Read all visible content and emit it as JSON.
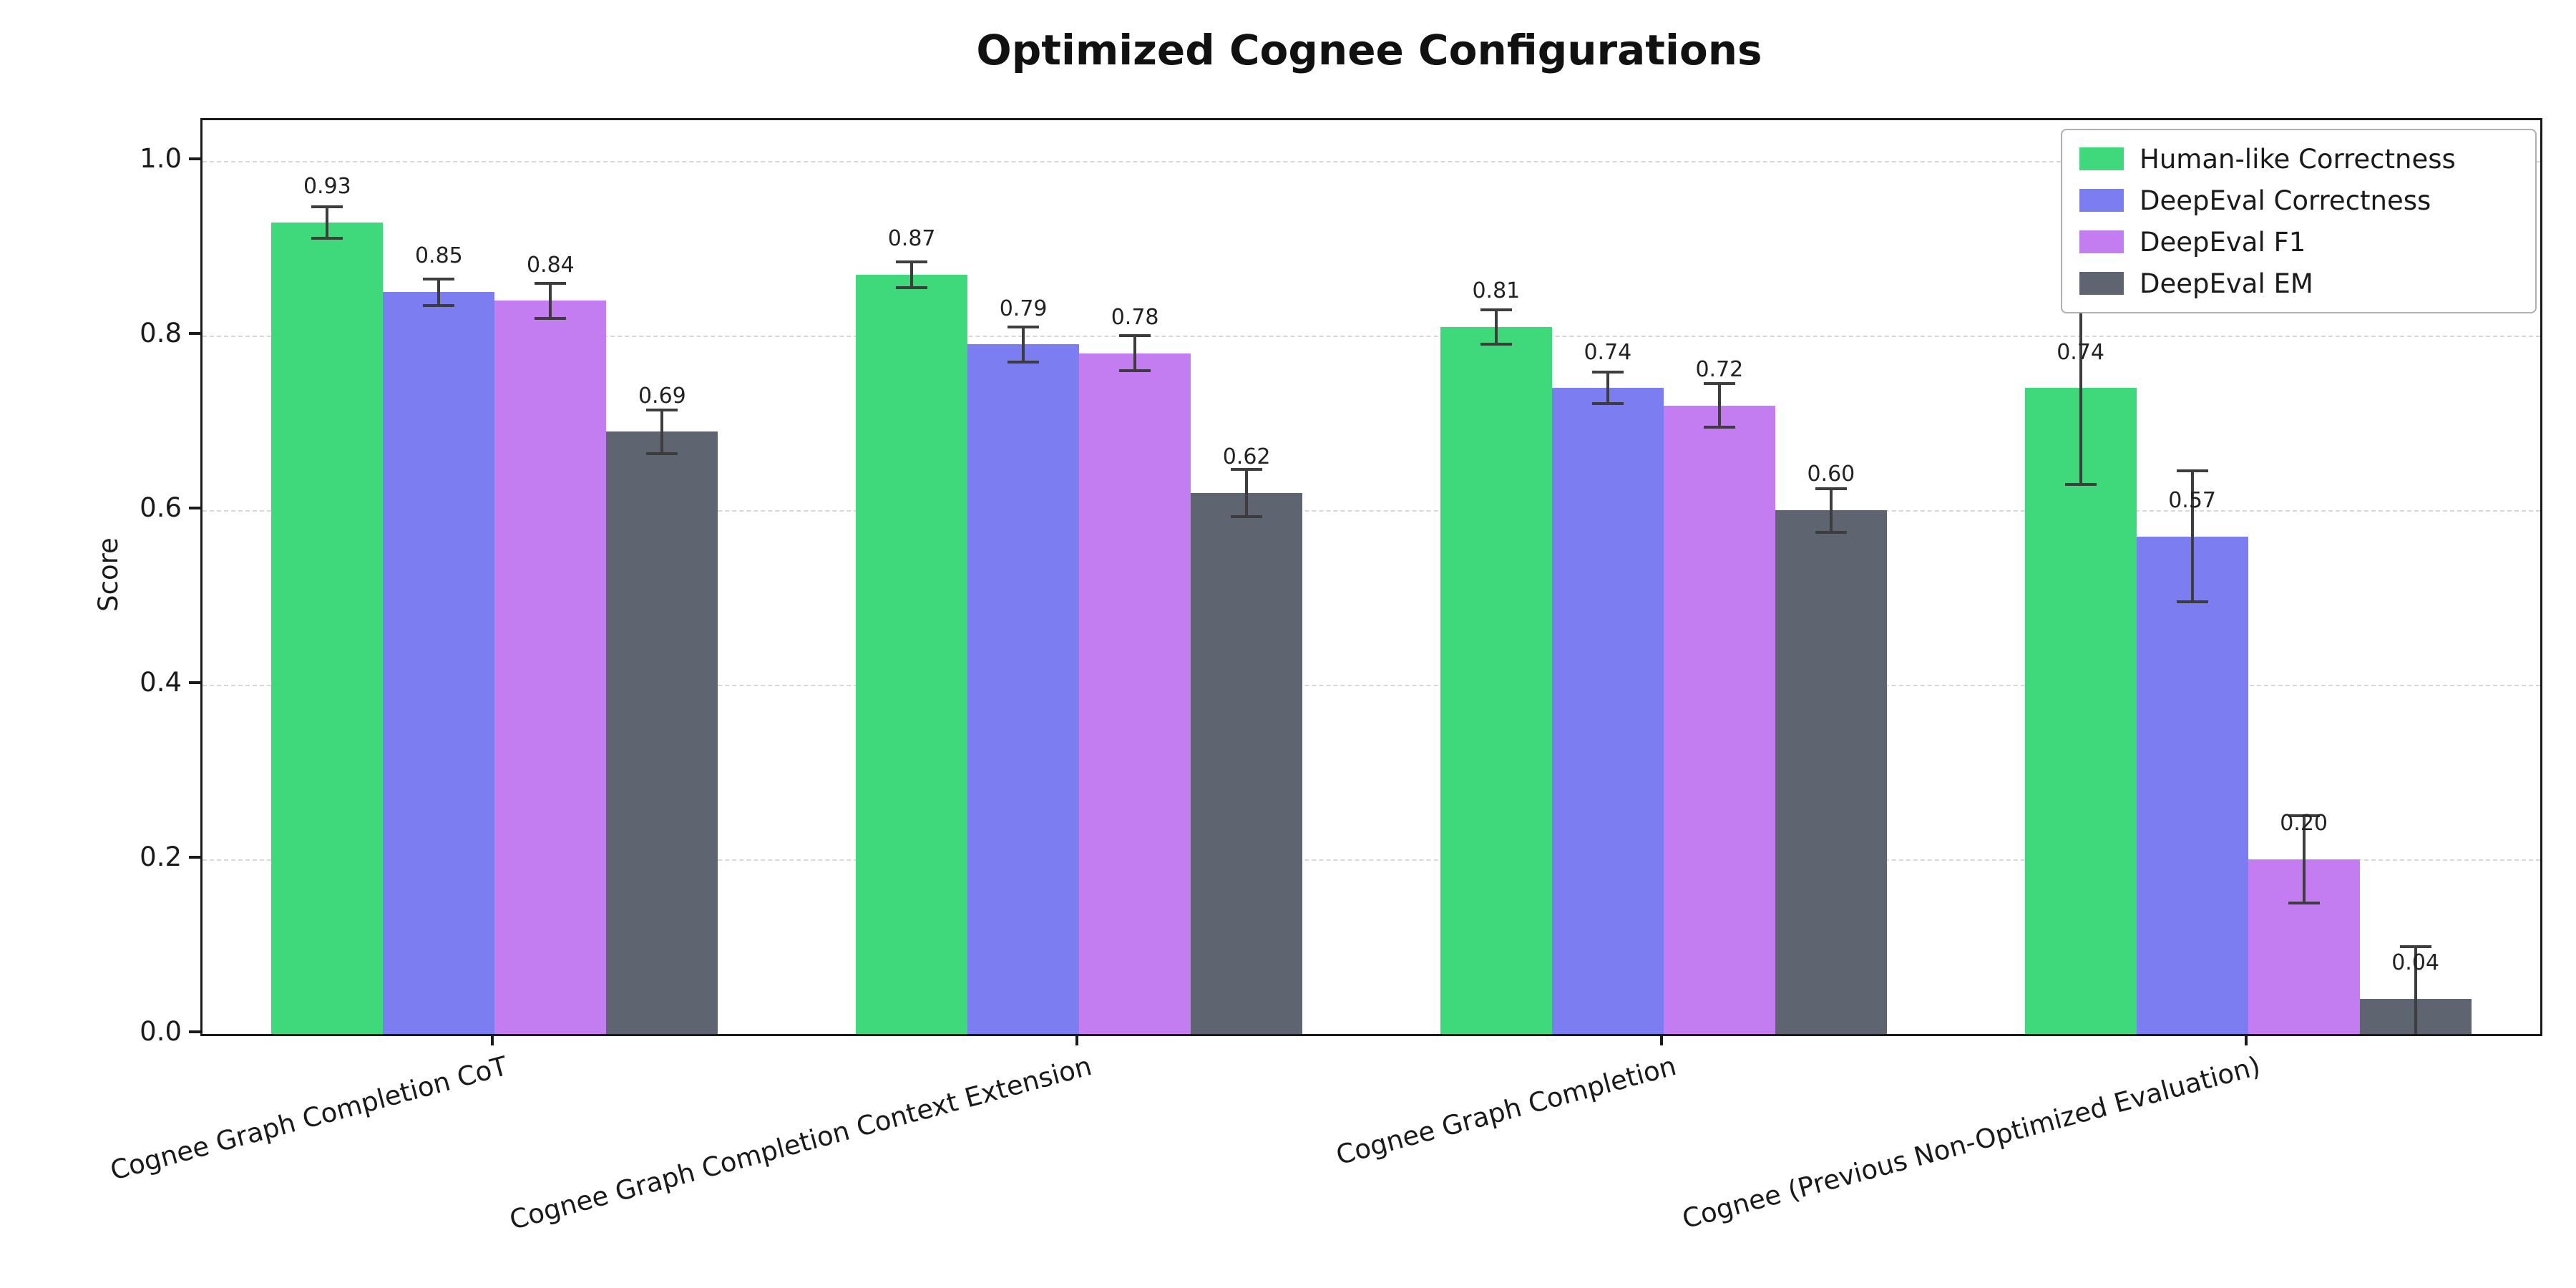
{
  "chart_data": {
    "type": "bar",
    "title": "Optimized Cognee Configurations",
    "xlabel": "",
    "ylabel": "Score",
    "ylim": [
      0,
      1.047
    ],
    "yticks": [
      0.0,
      0.2,
      0.4,
      0.6,
      0.8,
      1.0
    ],
    "ytick_labels": [
      "0.0",
      "0.2",
      "0.4",
      "0.6",
      "0.8",
      "1.0"
    ],
    "grid": "horizontal-dashed",
    "legend_position": "upper-right",
    "error_bars": true,
    "categories": [
      "Cognee Graph Completion CoT",
      "Cognee Graph Completion Context Extension",
      "Cognee Graph Completion",
      "Cognee (Previous Non-Optimized Evaluation)"
    ],
    "series": [
      {
        "name": "Human-like Correctness",
        "color": "#3fd97c",
        "values": [
          0.93,
          0.87,
          0.81,
          0.74
        ],
        "errors": [
          0.018,
          0.015,
          0.02,
          0.11
        ]
      },
      {
        "name": "DeepEval Correctness",
        "color": "#7b7df0",
        "values": [
          0.85,
          0.79,
          0.74,
          0.57
        ],
        "errors": [
          0.015,
          0.02,
          0.018,
          0.075
        ]
      },
      {
        "name": "DeepEval F1",
        "color": "#c47df0",
        "values": [
          0.84,
          0.78,
          0.72,
          0.2
        ],
        "errors": [
          0.02,
          0.02,
          0.025,
          0.05
        ]
      },
      {
        "name": "DeepEval EM",
        "color": "#5e6470",
        "values": [
          0.69,
          0.62,
          0.6,
          0.04
        ],
        "errors": [
          0.025,
          0.027,
          0.025,
          0.06
        ]
      }
    ],
    "value_labels": [
      [
        "0.93",
        "0.87",
        "0.81",
        "0.74"
      ],
      [
        "0.85",
        "0.79",
        "0.74",
        "0.57"
      ],
      [
        "0.84",
        "0.78",
        "0.72",
        "0.20"
      ],
      [
        "0.69",
        "0.62",
        "0.60",
        "0.04"
      ]
    ]
  }
}
